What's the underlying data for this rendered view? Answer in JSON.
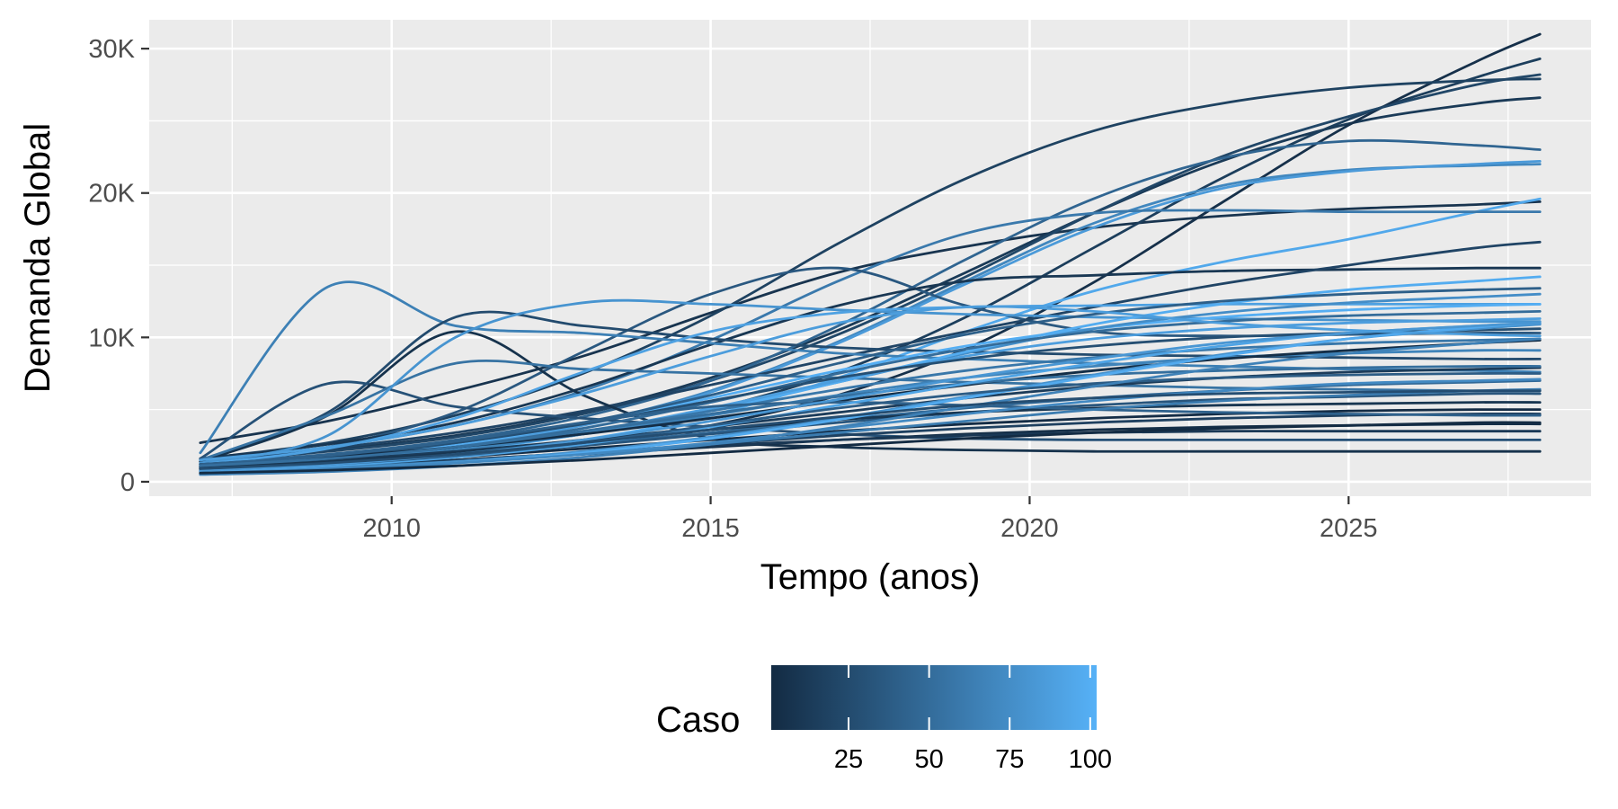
{
  "chart_data": {
    "type": "line",
    "xlabel": "Tempo (anos)",
    "ylabel": "Demanda Global",
    "xlim": [
      2006.2,
      2028.8
    ],
    "ylim": [
      -1000,
      32000
    ],
    "x_ticks": [
      2010,
      2015,
      2020,
      2025
    ],
    "x_tick_labels": [
      "2010",
      "2015",
      "2020",
      "2025"
    ],
    "y_ticks": [
      0,
      10000,
      20000,
      30000
    ],
    "y_tick_labels": [
      "0",
      "10K",
      "20K",
      "30K"
    ],
    "grid": true,
    "colorscale": {
      "low": "#132b43",
      "high": "#56b1f7"
    },
    "legend": {
      "title": "Caso",
      "position": "bottom",
      "range": [
        1,
        102
      ],
      "ticks": [
        25,
        50,
        75,
        100
      ],
      "tick_labels": [
        "25",
        "50",
        "75",
        "100"
      ]
    },
    "x": [
      2007,
      2009,
      2011,
      2013,
      2015,
      2017,
      2019,
      2021,
      2023,
      2025,
      2027,
      2028
    ],
    "series": [
      {
        "caso": 8,
        "values": [
          2700,
          4200,
          6300,
          8700,
          11700,
          14500,
          16300,
          17600,
          18400,
          18900,
          19200,
          19400
        ]
      },
      {
        "caso": 12,
        "values": [
          1500,
          2200,
          3200,
          4800,
          7200,
          10500,
          14500,
          18600,
          22200,
          24800,
          26200,
          26600
        ]
      },
      {
        "caso": 15,
        "values": [
          1200,
          1600,
          2300,
          3300,
          5000,
          7600,
          11400,
          16200,
          21000,
          25100,
          28000,
          29300
        ]
      },
      {
        "caso": 5,
        "values": [
          1000,
          1300,
          1800,
          2600,
          3900,
          6000,
          9200,
          13800,
          19300,
          24700,
          29100,
          31000
        ]
      },
      {
        "caso": 18,
        "values": [
          1600,
          2700,
          4600,
          7500,
          11500,
          16500,
          21000,
          24300,
          26200,
          27300,
          27800,
          27900
        ]
      },
      {
        "caso": 22,
        "values": [
          1400,
          2100,
          3100,
          4700,
          7000,
          10200,
          14200,
          18600,
          22500,
          25300,
          27500,
          28200
        ]
      },
      {
        "caso": 45,
        "values": [
          1300,
          1900,
          2900,
          4500,
          7000,
          10800,
          15400,
          19600,
          22400,
          23600,
          23300,
          23000
        ]
      },
      {
        "caso": 70,
        "values": [
          1200,
          1700,
          2600,
          4000,
          6300,
          9700,
          13900,
          17900,
          20500,
          21600,
          21900,
          22000
        ]
      },
      {
        "caso": 85,
        "values": [
          1100,
          1600,
          2500,
          3900,
          6200,
          9600,
          13700,
          17600,
          20300,
          21500,
          22000,
          22200
        ]
      },
      {
        "caso": 95,
        "values": [
          900,
          1300,
          1900,
          2900,
          4600,
          7200,
          10400,
          13200,
          15200,
          16800,
          18700,
          19600
        ]
      },
      {
        "caso": 60,
        "values": [
          1500,
          2400,
          3900,
          6300,
          9800,
          13900,
          17200,
          18600,
          18800,
          18700,
          18700,
          18700
        ]
      },
      {
        "caso": 35,
        "values": [
          1300,
          2400,
          4800,
          9000,
          13000,
          14800,
          12200,
          10400,
          10100,
          10200,
          10300,
          10300
        ]
      },
      {
        "caso": 10,
        "values": [
          1600,
          2600,
          4100,
          6500,
          9500,
          12200,
          13900,
          14300,
          14600,
          14700,
          14800,
          14800
        ]
      },
      {
        "caso": 20,
        "values": [
          1500,
          2300,
          3400,
          4900,
          6700,
          8600,
          10400,
          12100,
          13700,
          15000,
          16200,
          16600
        ]
      },
      {
        "caso": 65,
        "values": [
          2000,
          13500,
          10800,
          10300,
          9600,
          8900,
          8500,
          8200,
          8000,
          7800,
          7700,
          7600
        ]
      },
      {
        "caso": 25,
        "values": [
          1400,
          4800,
          11400,
          10800,
          9900,
          9300,
          9000,
          8800,
          8700,
          8600,
          8500,
          8500
        ]
      },
      {
        "caso": 30,
        "values": [
          1600,
          6800,
          5200,
          4400,
          3800,
          3300,
          3000,
          2900,
          2900,
          2900,
          2900,
          2900
        ]
      },
      {
        "caso": 6,
        "values": [
          1400,
          4600,
          10400,
          6000,
          3000,
          2400,
          2200,
          2100,
          2100,
          2100,
          2100,
          2100
        ]
      },
      {
        "caso": 55,
        "values": [
          1500,
          4600,
          8200,
          7800,
          7500,
          7200,
          6900,
          6700,
          6500,
          6400,
          6300,
          6300
        ]
      },
      {
        "caso": 80,
        "values": [
          1300,
          3200,
          10000,
          12400,
          12300,
          11900,
          11600,
          11400,
          11300,
          11200,
          11100,
          11100
        ]
      },
      {
        "caso": 90,
        "values": [
          1200,
          2300,
          4400,
          7600,
          10400,
          11700,
          12100,
          12200,
          12300,
          12300,
          12300,
          12300
        ]
      },
      {
        "caso": 100,
        "values": [
          1000,
          1600,
          2600,
          4000,
          5800,
          7700,
          9400,
          10600,
          11400,
          11900,
          12200,
          12300
        ]
      },
      {
        "caso": 75,
        "values": [
          900,
          1400,
          2200,
          3400,
          5000,
          6900,
          8900,
          10600,
          11700,
          12400,
          12800,
          13000
        ]
      },
      {
        "caso": 98,
        "values": [
          800,
          1300,
          2100,
          3300,
          4900,
          6900,
          9000,
          10900,
          12300,
          13300,
          13900,
          14200
        ]
      },
      {
        "caso": 40,
        "values": [
          1100,
          1700,
          2700,
          4100,
          6000,
          8200,
          10200,
          11600,
          12500,
          13000,
          13300,
          13400
        ]
      },
      {
        "caso": 50,
        "values": [
          1000,
          1500,
          2400,
          3700,
          5500,
          7500,
          9200,
          10400,
          11100,
          11500,
          11700,
          11800
        ]
      },
      {
        "caso": 88,
        "values": [
          900,
          1400,
          2200,
          3400,
          5100,
          7000,
          8700,
          9900,
          10600,
          11000,
          11200,
          11300
        ]
      },
      {
        "caso": 28,
        "values": [
          1200,
          1800,
          2700,
          4000,
          5600,
          7200,
          8500,
          9400,
          10000,
          10300,
          10500,
          10600
        ]
      },
      {
        "caso": 58,
        "values": [
          1100,
          1600,
          2400,
          3500,
          4900,
          6400,
          7700,
          8600,
          9200,
          9600,
          9800,
          9900
        ]
      },
      {
        "caso": 68,
        "values": [
          1000,
          1500,
          2200,
          3300,
          4600,
          6000,
          7200,
          8000,
          8600,
          8900,
          9100,
          9100
        ]
      },
      {
        "caso": 3,
        "values": [
          1200,
          1700,
          2400,
          3300,
          4400,
          5600,
          6700,
          7700,
          8500,
          9100,
          9600,
          9800
        ]
      },
      {
        "caso": 14,
        "values": [
          1100,
          1500,
          2100,
          2900,
          3800,
          4800,
          5800,
          6600,
          7200,
          7600,
          7800,
          7900
        ]
      },
      {
        "caso": 48,
        "values": [
          1000,
          1400,
          1900,
          2600,
          3400,
          4300,
          5100,
          5800,
          6300,
          6700,
          6900,
          7000
        ]
      },
      {
        "caso": 33,
        "values": [
          900,
          1300,
          1800,
          2500,
          3300,
          4100,
          4800,
          5300,
          5700,
          5900,
          6100,
          6100
        ]
      },
      {
        "caso": 9,
        "values": [
          1000,
          1400,
          2000,
          2800,
          3600,
          4300,
          4800,
          5100,
          5300,
          5400,
          5500,
          5500
        ]
      },
      {
        "caso": 2,
        "values": [
          900,
          1200,
          1700,
          2300,
          2900,
          3500,
          4000,
          4400,
          4700,
          4900,
          5000,
          5000
        ]
      },
      {
        "caso": 17,
        "values": [
          800,
          1100,
          1500,
          2000,
          2600,
          3200,
          3700,
          4100,
          4400,
          4600,
          4700,
          4700
        ]
      },
      {
        "caso": 4,
        "values": [
          700,
          1000,
          1400,
          1900,
          2400,
          2900,
          3300,
          3600,
          3800,
          3900,
          4000,
          4000
        ]
      },
      {
        "caso": 42,
        "values": [
          1200,
          1800,
          2800,
          4100,
          5200,
          5500,
          5300,
          5000,
          4800,
          4700,
          4600,
          4600
        ]
      },
      {
        "caso": 11,
        "values": [
          800,
          1100,
          1500,
          2000,
          2500,
          2900,
          3200,
          3400,
          3500,
          3500,
          3500,
          3500
        ]
      },
      {
        "caso": 52,
        "values": [
          1100,
          1600,
          2400,
          3500,
          4700,
          5900,
          6800,
          7400,
          7700,
          7900,
          8000,
          8000
        ]
      },
      {
        "caso": 62,
        "values": [
          700,
          1000,
          1400,
          1900,
          2600,
          3400,
          4200,
          5000,
          5600,
          6000,
          6300,
          6400
        ]
      },
      {
        "caso": 78,
        "values": [
          600,
          900,
          1400,
          2100,
          3100,
          4400,
          5900,
          7400,
          8800,
          9900,
          10600,
          10900
        ]
      },
      {
        "caso": 92,
        "values": [
          700,
          1100,
          1700,
          2600,
          3800,
          5300,
          6800,
          8200,
          9400,
          10300,
          10800,
          11000
        ]
      },
      {
        "caso": 97,
        "values": [
          500,
          800,
          1300,
          2000,
          3000,
          4300,
          5800,
          7300,
          8700,
          9900,
          10700,
          11000
        ]
      },
      {
        "caso": 72,
        "values": [
          600,
          900,
          1300,
          1900,
          2700,
          3700,
          4700,
          5600,
          6300,
          6800,
          7000,
          7100
        ]
      },
      {
        "caso": 38,
        "values": [
          800,
          1200,
          1800,
          2700,
          3900,
          5100,
          6100,
          6800,
          7200,
          7400,
          7500,
          7500
        ]
      },
      {
        "caso": 82,
        "values": [
          800,
          1200,
          1900,
          2900,
          4200,
          5700,
          7200,
          8500,
          9600,
          10300,
          10800,
          11000
        ]
      },
      {
        "caso": 66,
        "values": [
          500,
          700,
          1100,
          1700,
          2600,
          3800,
          5200,
          6600,
          7900,
          8900,
          9600,
          9900
        ]
      },
      {
        "caso": 87,
        "values": [
          1500,
          2400,
          3900,
          6100,
          8700,
          11000,
          12100,
          11800,
          11000,
          10500,
          10200,
          10100
        ]
      },
      {
        "caso": 27,
        "values": [
          900,
          1300,
          1900,
          2700,
          3600,
          4500,
          5300,
          5800,
          6100,
          6200,
          6300,
          6300
        ]
      },
      {
        "caso": 1,
        "values": [
          600,
          800,
          1100,
          1500,
          2000,
          2500,
          3000,
          3400,
          3700,
          3900,
          4100,
          4100
        ]
      }
    ]
  }
}
